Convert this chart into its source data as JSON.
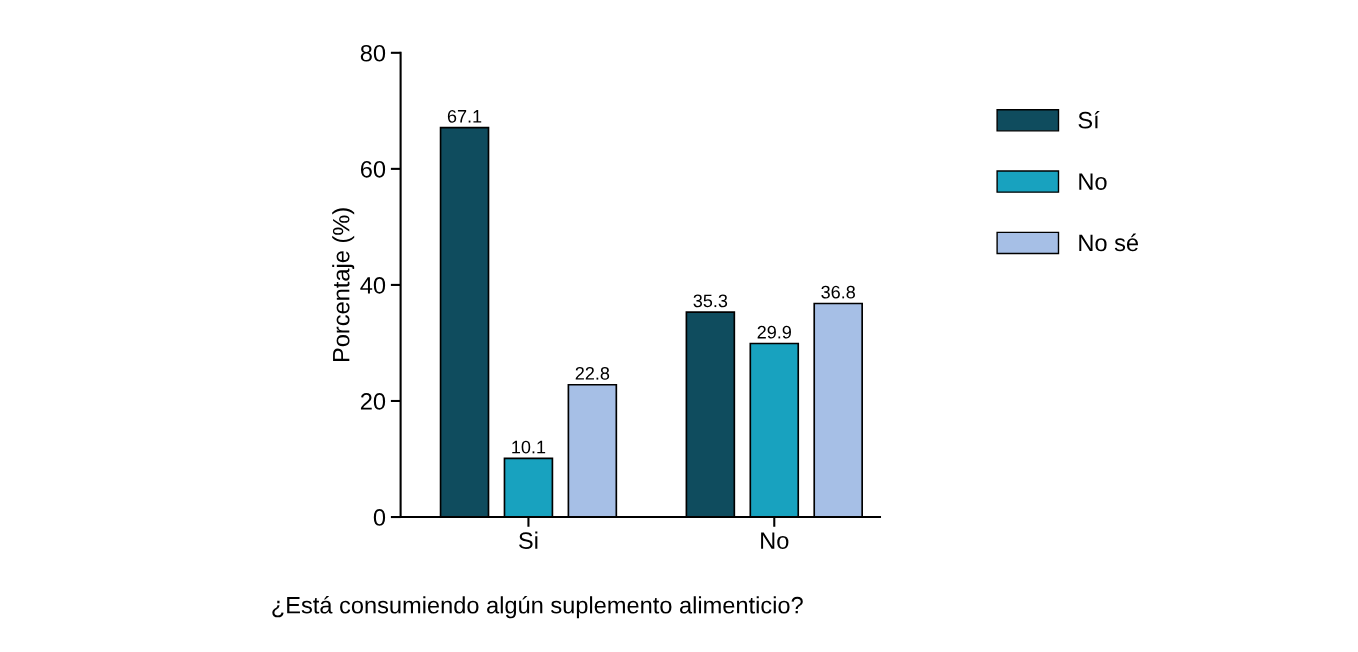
{
  "chart_data": {
    "type": "bar",
    "xlabel": "¿Está consumiendo algún suplemento alimenticio?",
    "ylabel": "Porcentaje (%)",
    "categories": [
      "Si",
      "No"
    ],
    "series": [
      {
        "name": "Sí",
        "color": "#0f4c5e",
        "values": [
          67.1,
          35.3
        ]
      },
      {
        "name": "No",
        "color": "#18a2bf",
        "values": [
          10.1,
          29.9
        ]
      },
      {
        "name": "No sé",
        "color": "#a6bfe6",
        "values": [
          22.8,
          36.8
        ]
      }
    ],
    "ylim": [
      0,
      80
    ],
    "yticks": [
      0,
      20,
      40,
      60,
      80
    ],
    "data_labels": true,
    "legend": "right",
    "grid": false
  }
}
